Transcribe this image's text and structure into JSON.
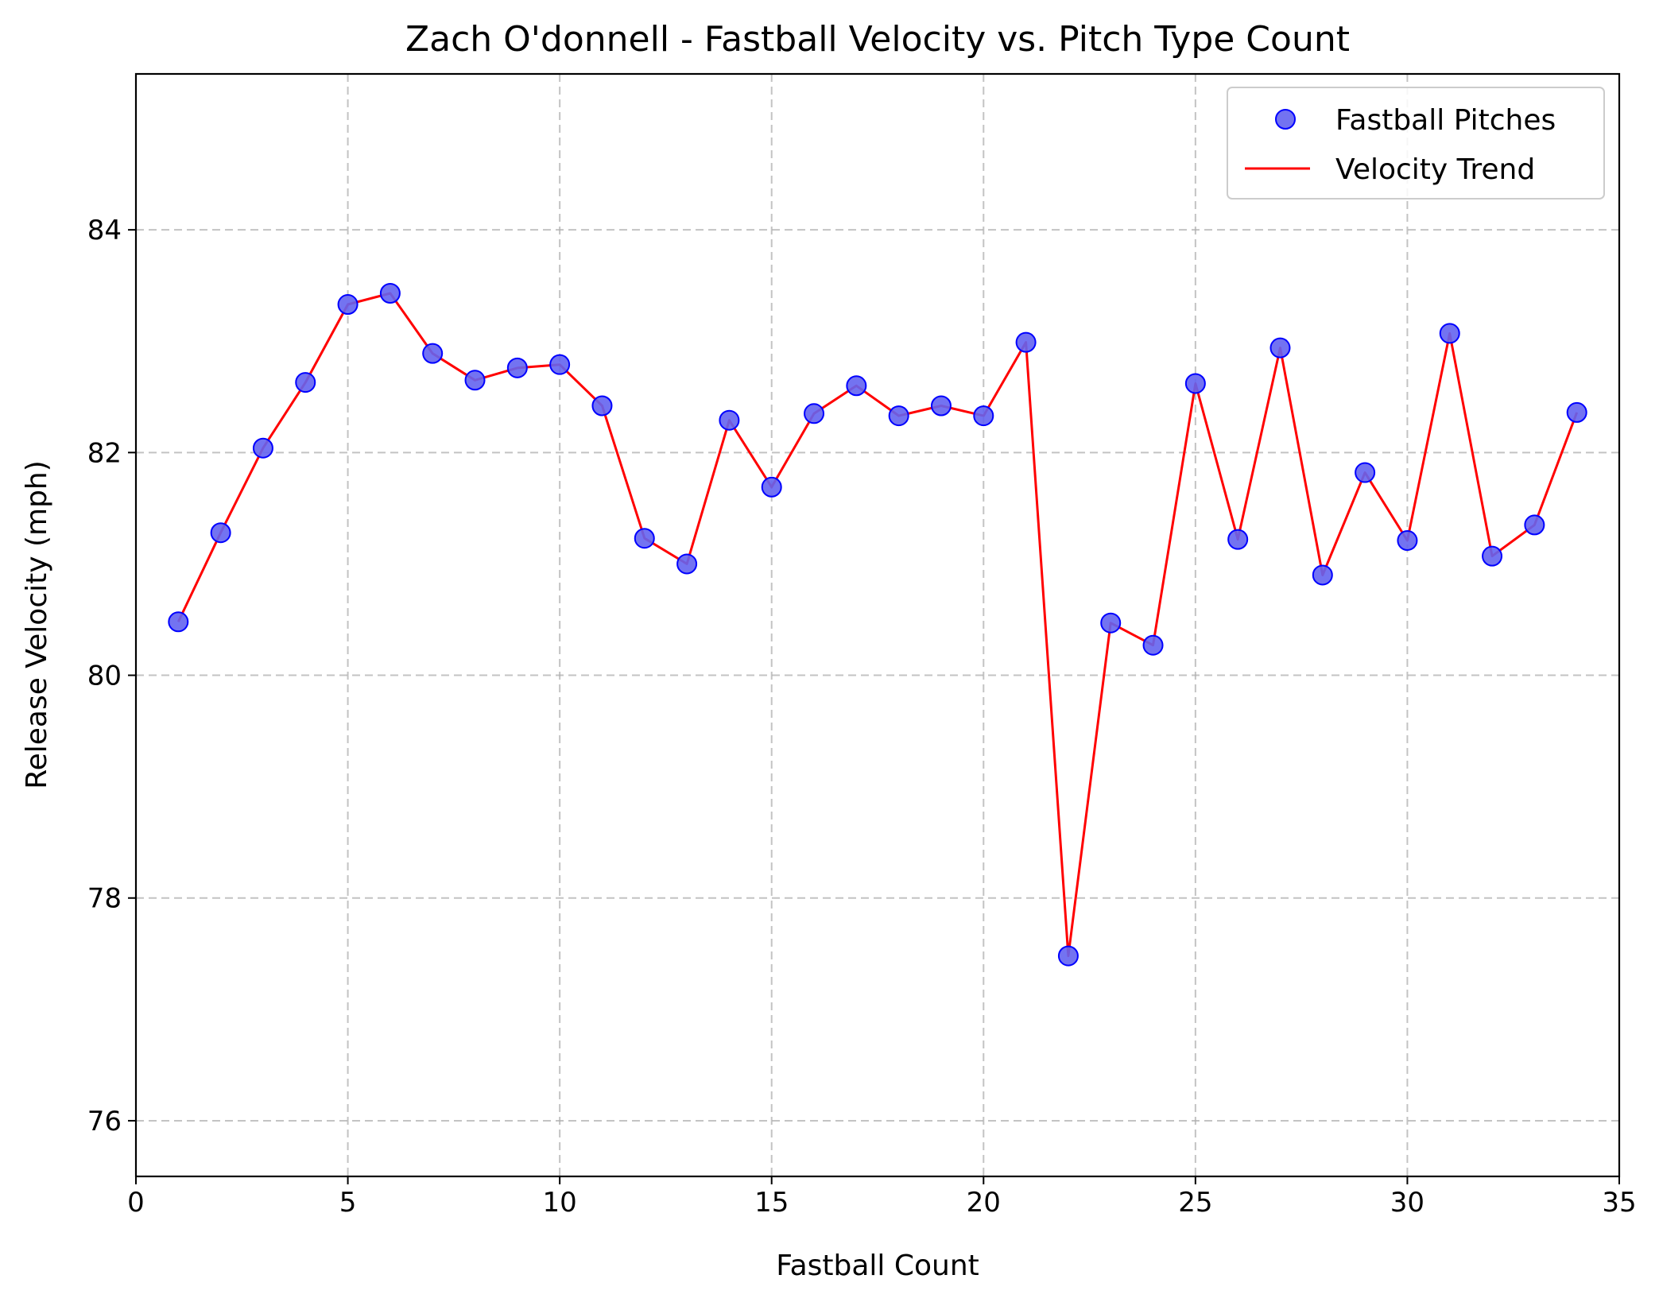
{
  "chart_data": {
    "type": "scatter",
    "title": "Zach O'donnell - Fastball Velocity vs. Pitch Type Count",
    "xlabel": "Fastball Count",
    "ylabel": "Release Velocity (mph)",
    "xlim": [
      0,
      35
    ],
    "ylim": [
      75.5,
      85.4
    ],
    "xticks": [
      0,
      5,
      10,
      15,
      20,
      25,
      30,
      35
    ],
    "yticks": [
      76,
      78,
      80,
      82,
      84
    ],
    "grid": true,
    "legend_position": "upper right",
    "x": [
      1,
      2,
      3,
      4,
      5,
      6,
      7,
      8,
      9,
      10,
      11,
      12,
      13,
      14,
      15,
      16,
      17,
      18,
      19,
      20,
      21,
      22,
      23,
      24,
      25,
      26,
      27,
      28,
      29,
      30,
      31,
      32,
      33,
      34
    ],
    "series": [
      {
        "name": "Fastball Pitches",
        "kind": "scatter",
        "color": "#6464f0",
        "edge_color": "#0000ff",
        "values": [
          80.48,
          81.28,
          82.04,
          82.63,
          83.33,
          83.43,
          82.89,
          82.65,
          82.76,
          82.79,
          82.42,
          81.23,
          81.0,
          82.29,
          81.69,
          82.35,
          82.6,
          82.33,
          82.42,
          82.33,
          82.99,
          77.48,
          80.47,
          80.27,
          82.62,
          81.22,
          82.94,
          80.9,
          81.82,
          81.21,
          83.07,
          81.07,
          81.35,
          82.36
        ]
      },
      {
        "name": "Velocity Trend",
        "kind": "line",
        "color": "#ff0000",
        "values": [
          80.48,
          81.28,
          82.04,
          82.63,
          83.33,
          83.43,
          82.89,
          82.65,
          82.76,
          82.79,
          82.42,
          81.23,
          81.0,
          82.29,
          81.69,
          82.35,
          82.6,
          82.33,
          82.42,
          82.33,
          82.99,
          77.48,
          80.47,
          80.27,
          82.62,
          81.22,
          82.94,
          80.9,
          81.82,
          81.21,
          83.07,
          81.07,
          81.35,
          82.36
        ]
      }
    ]
  }
}
